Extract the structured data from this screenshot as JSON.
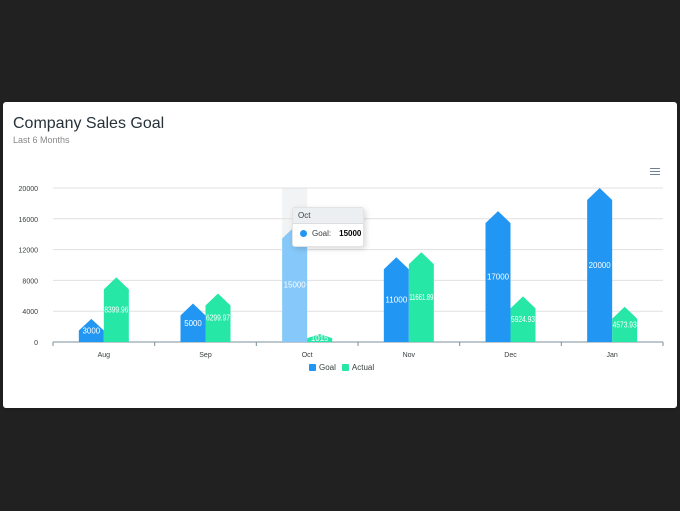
{
  "card": {
    "title": "Company Sales Goal",
    "subtitle": "Last 6 Months",
    "menu_icon": "hamburger-menu-icon"
  },
  "colors": {
    "goal": "#2196f3",
    "goal_highlight": "#86c8f9",
    "actual": "#26e7a6",
    "hover_band": "#f1f3f4",
    "grid": "#e0e0e0",
    "axis_text": "#373d3f",
    "label_text": "#ffffff"
  },
  "tooltip": {
    "title": "Oct",
    "series_label": "Goal:",
    "value": "15000"
  },
  "chart_data": {
    "type": "bar",
    "categories": [
      "Aug",
      "Sep",
      "Oct",
      "Nov",
      "Dec",
      "Jan"
    ],
    "series": [
      {
        "name": "Goal",
        "values": [
          3000,
          5000,
          15000,
          11000,
          17000,
          20000
        ]
      },
      {
        "name": "Actual",
        "values": [
          8399.96,
          6299.97,
          1015.04,
          11661.89,
          5924.93,
          4573.93
        ]
      }
    ],
    "data_labels": {
      "Goal": [
        "3000",
        "5000",
        "15000",
        "11000",
        "17000",
        "20000"
      ],
      "Actual": [
        "8399.96",
        "6299.97",
        "1015",
        "11661.89",
        "5924.93",
        "4573.93"
      ]
    },
    "y_ticks": [
      "0",
      "4000",
      "8000",
      "12000",
      "16000",
      "20000"
    ],
    "ylim": [
      0,
      20000
    ],
    "grid": true,
    "legend": "bottom-center",
    "highlighted_category": "Oct"
  }
}
